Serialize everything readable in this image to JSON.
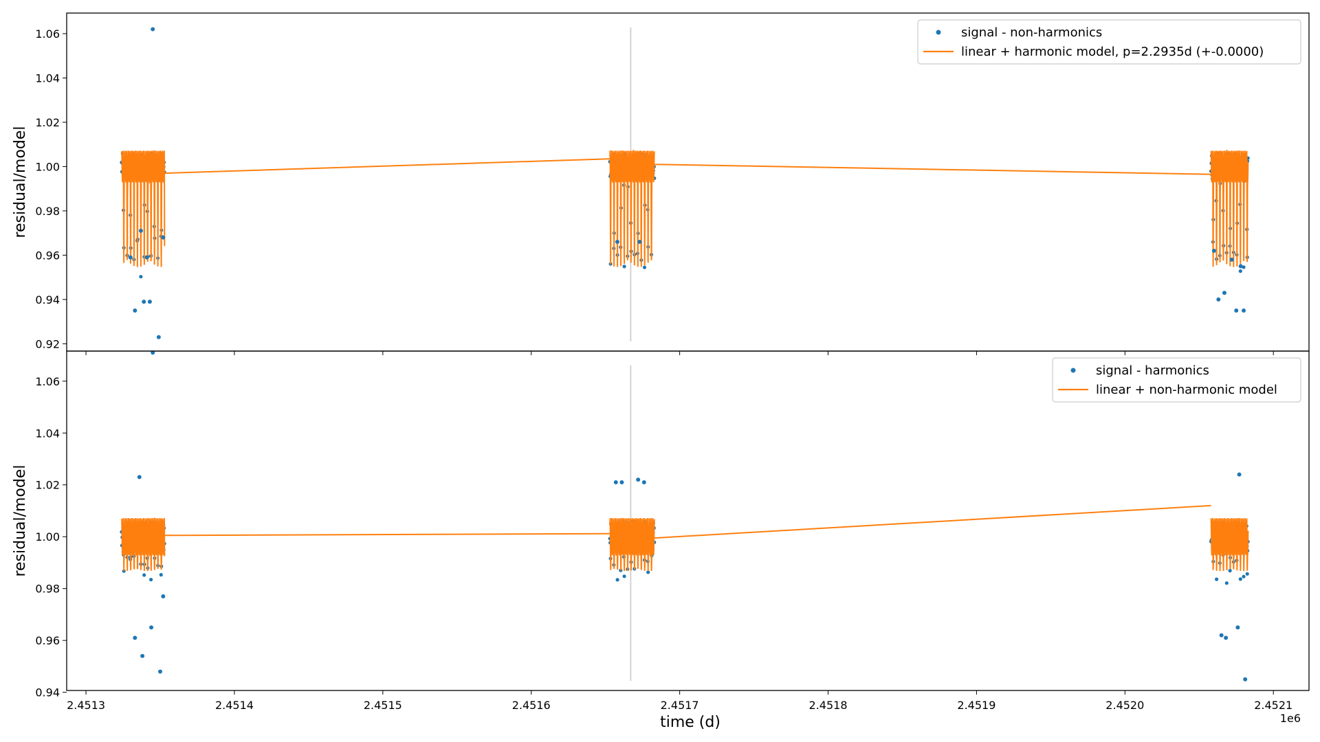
{
  "figure": {
    "xaxis_offset": "1e6"
  },
  "chart_data": [
    {
      "type": "scatter",
      "ylabel": "residual/model",
      "xlabel": "",
      "xlim": [
        2451287,
        2452124
      ],
      "ylim": [
        0.9167,
        1.0693
      ],
      "yticks": [
        0.92,
        0.94,
        0.96,
        0.98,
        1.0,
        1.02,
        1.04,
        1.06
      ],
      "xticks": [
        2.4513,
        2.4514,
        2.4515,
        2.4516,
        2.4517,
        2.4518,
        2.4519,
        2.452,
        2.4521
      ],
      "vline_x": 2451667,
      "legend": {
        "position": "top-right",
        "entries": [
          "signal - non-harmonics",
          "linear + harmonic model, p=2.2935d (+-0.0000)"
        ]
      },
      "colors": {
        "signal": "#1f77b4",
        "model": "#ff7f0e",
        "vline": "#d3d3d3"
      },
      "segments": [
        {
          "x_range": [
            2451324,
            2451353
          ],
          "base": 1.0
        },
        {
          "x_range": [
            2451653,
            2451683
          ],
          "base": 1.0
        },
        {
          "x_range": [
            2452058,
            2452083
          ],
          "base": 1.0
        }
      ],
      "outliers": [
        {
          "x": 2451333,
          "y": 0.935
        },
        {
          "x": 2451339,
          "y": 0.939
        },
        {
          "x": 2451345,
          "y": 1.062
        },
        {
          "x": 2451343,
          "y": 0.939
        },
        {
          "x": 2451349,
          "y": 0.923
        },
        {
          "x": 2451330,
          "y": 0.959
        },
        {
          "x": 2451341,
          "y": 0.959
        },
        {
          "x": 2451352,
          "y": 0.968
        },
        {
          "x": 2451337,
          "y": 0.971
        },
        {
          "x": 2452063,
          "y": 0.94
        },
        {
          "x": 2452067,
          "y": 0.943
        },
        {
          "x": 2452075,
          "y": 0.935
        },
        {
          "x": 2452080,
          "y": 0.935
        },
        {
          "x": 2452078,
          "y": 0.955
        },
        {
          "x": 2452060,
          "y": 0.962
        },
        {
          "x": 2452072,
          "y": 0.958
        },
        {
          "x": 2451658,
          "y": 0.966
        },
        {
          "x": 2451673,
          "y": 0.966
        }
      ],
      "model_line": {
        "x": [
          2451353,
          2451654,
          2451683,
          2452058
        ],
        "y": [
          0.997,
          1.0035,
          1.001,
          0.9965
        ]
      },
      "amplitude": 0.045,
      "jitter": 0.006
    },
    {
      "type": "scatter",
      "ylabel": "residual/model",
      "xlabel": "time (d)",
      "xlim": [
        2451287,
        2452124
      ],
      "ylim": [
        0.9407,
        1.0716
      ],
      "yticks": [
        0.94,
        0.96,
        0.98,
        1.0,
        1.02,
        1.04,
        1.06
      ],
      "xticks": [
        2.4513,
        2.4514,
        2.4515,
        2.4516,
        2.4517,
        2.4518,
        2.4519,
        2.452,
        2.4521
      ],
      "vline_x": 2451667,
      "legend": {
        "position": "top-right",
        "entries": [
          "signal - harmonics",
          "linear + non-harmonic model"
        ]
      },
      "colors": {
        "signal": "#1f77b4",
        "model": "#ff7f0e",
        "vline": "#d3d3d3"
      },
      "segments": [
        {
          "x_range": [
            2451324,
            2451353
          ],
          "base": 1.0
        },
        {
          "x_range": [
            2451653,
            2451683
          ],
          "base": 1.0
        },
        {
          "x_range": [
            2452058,
            2452083
          ],
          "base": 1.0
        }
      ],
      "outliers": [
        {
          "x": 2451345,
          "y": 1.071
        },
        {
          "x": 2451333,
          "y": 0.961
        },
        {
          "x": 2451338,
          "y": 0.954
        },
        {
          "x": 2451344,
          "y": 0.965
        },
        {
          "x": 2451350,
          "y": 0.948
        },
        {
          "x": 2451352,
          "y": 0.977
        },
        {
          "x": 2451336,
          "y": 1.023
        },
        {
          "x": 2452065,
          "y": 0.962
        },
        {
          "x": 2452068,
          "y": 0.961
        },
        {
          "x": 2452076,
          "y": 0.965
        },
        {
          "x": 2452081,
          "y": 0.945
        },
        {
          "x": 2452077,
          "y": 1.024
        },
        {
          "x": 2451657,
          "y": 1.021
        },
        {
          "x": 2451661,
          "y": 1.021
        },
        {
          "x": 2451672,
          "y": 1.022
        },
        {
          "x": 2451676,
          "y": 1.021
        }
      ],
      "model_line": {
        "x": [
          2451353,
          2451654,
          2451683,
          2452058
        ],
        "y": [
          1.0005,
          1.0012,
          0.9995,
          1.012
        ]
      },
      "amplitude": 0.012,
      "jitter": 0.006
    }
  ]
}
